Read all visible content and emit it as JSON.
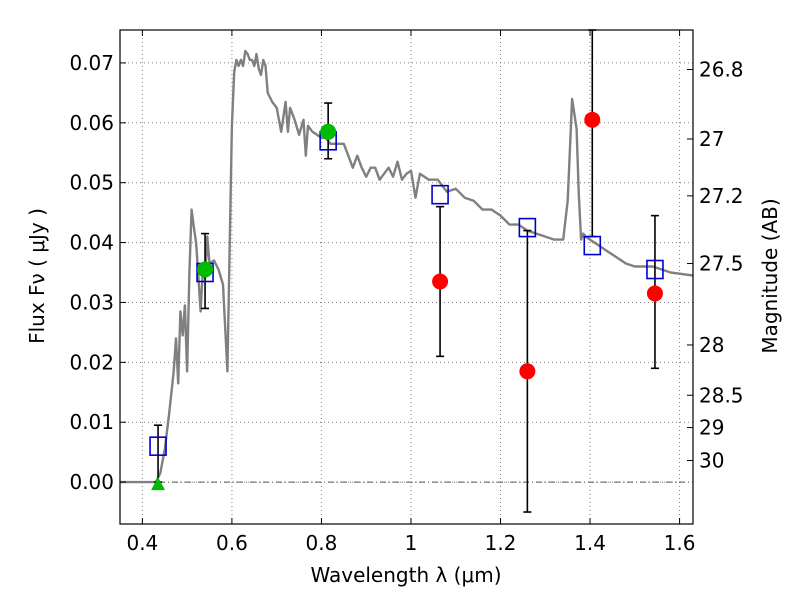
{
  "chart_data": {
    "type": "scatter",
    "xlabel": "Wavelength  λ (μm)",
    "ylabel": "Flux  Fν  ( μJy )",
    "ylabel_right": "Magnitude (AB)",
    "xlim": [
      0.35,
      1.63
    ],
    "ylim": [
      -0.007,
      0.0755
    ],
    "grid": true,
    "x_ticks": [
      0.4,
      0.6,
      0.8,
      1.0,
      1.2,
      1.4,
      1.6
    ],
    "x_tick_labels": [
      "0.4",
      "0.6",
      "0.8",
      "1",
      "1.2",
      "1.4",
      "1.6"
    ],
    "y_ticks": [
      0.0,
      0.01,
      0.02,
      0.03,
      0.04,
      0.05,
      0.06,
      0.07
    ],
    "y_tick_labels": [
      "0.00",
      "0.01",
      "0.02",
      "0.03",
      "0.04",
      "0.05",
      "0.06",
      "0.07"
    ],
    "right_ticks": [
      {
        "label": "26.8",
        "flux": 0.0689
      },
      {
        "label": "27",
        "flux": 0.0573
      },
      {
        "label": "27.2",
        "flux": 0.0478
      },
      {
        "label": "27.5",
        "flux": 0.0365
      },
      {
        "label": "28",
        "flux": 0.0229
      },
      {
        "label": "28.5",
        "flux": 0.0145
      },
      {
        "label": "29",
        "flux": 0.0091
      },
      {
        "label": "30",
        "flux": 0.0036
      }
    ],
    "colors": {
      "model": "#808080",
      "model_points": "#0000cc",
      "detections": "#ff0000",
      "green": "#00bb00",
      "errorbars": "#000000",
      "grid": "#808080"
    },
    "series": [
      {
        "kind": "line",
        "x": [
          0.35,
          0.43,
          0.44,
          0.45,
          0.46,
          0.47,
          0.475,
          0.48,
          0.485,
          0.49,
          0.495,
          0.5,
          0.505,
          0.51,
          0.515,
          0.52,
          0.525,
          0.53,
          0.535,
          0.54,
          0.545,
          0.55,
          0.56,
          0.57,
          0.58,
          0.59,
          0.6,
          0.605,
          0.61,
          0.615,
          0.62,
          0.625,
          0.63,
          0.635,
          0.64,
          0.645,
          0.65,
          0.655,
          0.66,
          0.665,
          0.67,
          0.675,
          0.68,
          0.69,
          0.7,
          0.71,
          0.72,
          0.725,
          0.73,
          0.74,
          0.75,
          0.76,
          0.765,
          0.77,
          0.78,
          0.79,
          0.8,
          0.81,
          0.82,
          0.83,
          0.84,
          0.85,
          0.86,
          0.87,
          0.88,
          0.89,
          0.9,
          0.91,
          0.92,
          0.93,
          0.94,
          0.95,
          0.96,
          0.97,
          0.98,
          0.99,
          1.0,
          1.01,
          1.02,
          1.04,
          1.06,
          1.08,
          1.1,
          1.12,
          1.14,
          1.16,
          1.18,
          1.2,
          1.22,
          1.24,
          1.26,
          1.28,
          1.3,
          1.32,
          1.34,
          1.35,
          1.36,
          1.37,
          1.375,
          1.38,
          1.385,
          1.39,
          1.4,
          1.42,
          1.44,
          1.46,
          1.48,
          1.5,
          1.52,
          1.54,
          1.56,
          1.58,
          1.6,
          1.63
        ],
        "y": [
          0.0,
          0.0,
          0.0015,
          0.0055,
          0.0115,
          0.0185,
          0.024,
          0.0165,
          0.0285,
          0.0245,
          0.0295,
          0.0185,
          0.035,
          0.0455,
          0.0425,
          0.04,
          0.0345,
          0.0285,
          0.0355,
          0.034,
          0.041,
          0.0365,
          0.037,
          0.0355,
          0.033,
          0.0185,
          0.0595,
          0.0685,
          0.0705,
          0.0695,
          0.0705,
          0.0695,
          0.072,
          0.0715,
          0.0705,
          0.0705,
          0.0695,
          0.0715,
          0.069,
          0.068,
          0.0705,
          0.0695,
          0.065,
          0.0635,
          0.0625,
          0.0585,
          0.0635,
          0.0585,
          0.0625,
          0.0605,
          0.058,
          0.0605,
          0.0545,
          0.0595,
          0.0585,
          0.058,
          0.0575,
          0.0575,
          0.0565,
          0.0565,
          0.0565,
          0.0565,
          0.0545,
          0.0525,
          0.0545,
          0.0525,
          0.051,
          0.0525,
          0.0525,
          0.0505,
          0.0515,
          0.0525,
          0.051,
          0.0535,
          0.0505,
          0.0515,
          0.052,
          0.0475,
          0.0515,
          0.0505,
          0.0505,
          0.0485,
          0.049,
          0.0475,
          0.047,
          0.0455,
          0.0455,
          0.0445,
          0.043,
          0.043,
          0.042,
          0.0415,
          0.041,
          0.0405,
          0.0405,
          0.047,
          0.064,
          0.059,
          0.048,
          0.0405,
          0.0415,
          0.041,
          0.0405,
          0.0395,
          0.0385,
          0.0375,
          0.0365,
          0.036,
          0.036,
          0.036,
          0.0355,
          0.035,
          0.0348,
          0.0345
        ]
      },
      {
        "kind": "open-square",
        "x": [
          0.435,
          0.54,
          0.815,
          1.065,
          1.26,
          1.405,
          1.545
        ],
        "y": [
          0.006,
          0.035,
          0.057,
          0.048,
          0.0425,
          0.0395,
          0.0355
        ]
      },
      {
        "kind": "filled-circle-red",
        "x": [
          1.065,
          1.26,
          1.405,
          1.545
        ],
        "y": [
          0.0335,
          0.0185,
          0.0605,
          0.0315
        ],
        "err": [
          [
            0.021,
            0.046
          ],
          [
            -0.005,
            0.042
          ],
          [
            0.041,
            0.0755
          ],
          [
            0.019,
            0.0445
          ]
        ]
      },
      {
        "kind": "filled-circle-green",
        "x": [
          0.54,
          0.815
        ],
        "y": [
          0.0355,
          0.0585
        ],
        "err": [
          [
            0.029,
            0.0415
          ],
          [
            0.054,
            0.0633
          ]
        ]
      },
      {
        "kind": "triangle-green",
        "x": [
          0.435
        ],
        "y": [
          -0.0005
        ],
        "err": [
          [
            0.0,
            0.0095
          ]
        ]
      }
    ]
  }
}
